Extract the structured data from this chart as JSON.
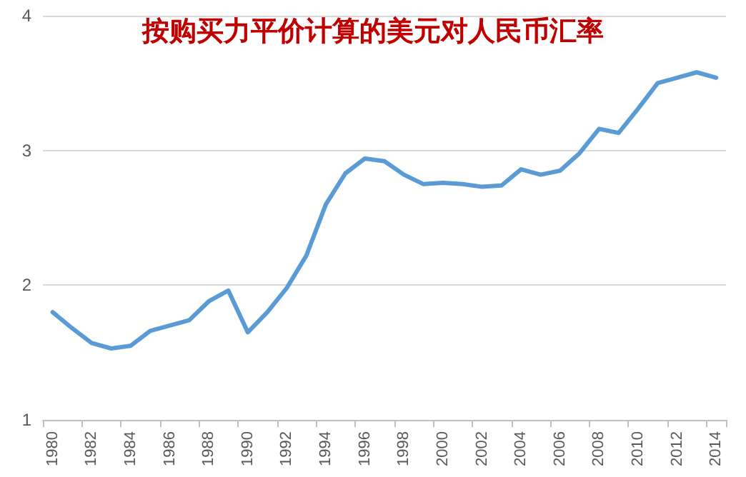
{
  "chart_data": {
    "type": "line",
    "title": "按购买力平价计算的美元对人民币汇率",
    "categories": [
      "1980",
      null,
      "1982",
      null,
      "1984",
      null,
      "1986",
      null,
      "1988",
      null,
      "1990",
      null,
      "1992",
      null,
      "1994",
      null,
      "1996",
      null,
      "1998",
      null,
      "2000",
      null,
      "2002",
      null,
      "2004",
      null,
      "2006",
      null,
      "2008",
      null,
      "2010",
      null,
      "2012",
      null,
      "2014"
    ],
    "series": [
      {
        "color": "#5b9bd5",
        "values": [
          1.8,
          1.68,
          1.57,
          1.53,
          1.55,
          1.66,
          1.7,
          1.74,
          1.88,
          1.96,
          1.65,
          1.8,
          1.98,
          2.22,
          2.6,
          2.83,
          2.94,
          2.92,
          2.82,
          2.75,
          2.76,
          2.75,
          2.73,
          2.74,
          2.86,
          2.82,
          2.85,
          2.98,
          3.16,
          3.13,
          3.31,
          3.5,
          3.54,
          3.58,
          3.54
        ]
      }
    ],
    "ylim": [
      1,
      4
    ],
    "yticks": [
      1,
      2,
      3,
      4
    ],
    "grid": "y",
    "marker": "none",
    "line_style": "solid"
  }
}
